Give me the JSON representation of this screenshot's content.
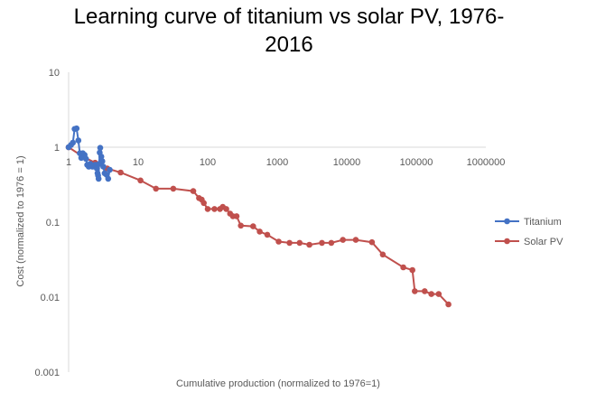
{
  "chart_data": {
    "type": "scatter",
    "title_line1": "Learning curve of titanium vs solar PV, 1976-",
    "title_line2": "2016",
    "xlabel": "Cumulative production (normalized to 1976=1)",
    "ylabel": "Cost (normalized to 1976 = 1)",
    "x_scale": "log",
    "y_scale": "log",
    "xlim": [
      1,
      1000000
    ],
    "ylim": [
      0.001,
      10
    ],
    "x_ticks": [
      "1",
      "10",
      "100",
      "1000",
      "10000",
      "100000",
      "1000000"
    ],
    "y_ticks": [
      "10",
      "1",
      "0.1",
      "0.01",
      "0.001"
    ],
    "grid": false,
    "legend_position": "right",
    "series": [
      {
        "name": "Titanium",
        "color": "#4472C4",
        "points": [
          [
            1.0,
            1.0
          ],
          [
            1.08,
            1.07
          ],
          [
            1.15,
            1.15
          ],
          [
            1.22,
            1.75
          ],
          [
            1.3,
            1.78
          ],
          [
            1.38,
            1.23
          ],
          [
            1.45,
            0.83
          ],
          [
            1.52,
            0.72
          ],
          [
            1.6,
            0.83
          ],
          [
            1.7,
            0.79
          ],
          [
            1.78,
            0.7
          ],
          [
            1.85,
            0.58
          ],
          [
            1.95,
            0.55
          ],
          [
            2.05,
            0.6
          ],
          [
            2.2,
            0.55
          ],
          [
            2.4,
            0.58
          ],
          [
            2.55,
            0.52
          ],
          [
            2.6,
            0.45
          ],
          [
            2.65,
            0.42
          ],
          [
            2.7,
            0.38
          ],
          [
            2.75,
            0.6
          ],
          [
            2.8,
            0.85
          ],
          [
            2.85,
            0.98
          ],
          [
            2.95,
            0.75
          ],
          [
            3.05,
            0.65
          ],
          [
            3.15,
            0.55
          ],
          [
            3.3,
            0.45
          ],
          [
            3.5,
            0.43
          ],
          [
            3.7,
            0.38
          ],
          [
            3.9,
            0.5
          ]
        ]
      },
      {
        "name": "Solar PV",
        "color": "#C0504D",
        "points": [
          [
            1.0,
            1.0
          ],
          [
            1.6,
            0.75
          ],
          [
            2.4,
            0.62
          ],
          [
            3.6,
            0.52
          ],
          [
            5.6,
            0.46
          ],
          [
            10.8,
            0.36
          ],
          [
            18,
            0.28
          ],
          [
            32,
            0.28
          ],
          [
            62,
            0.26
          ],
          [
            75,
            0.21
          ],
          [
            82,
            0.2
          ],
          [
            88,
            0.18
          ],
          [
            100,
            0.15
          ],
          [
            125,
            0.15
          ],
          [
            150,
            0.15
          ],
          [
            165,
            0.16
          ],
          [
            185,
            0.15
          ],
          [
            210,
            0.13
          ],
          [
            230,
            0.12
          ],
          [
            260,
            0.12
          ],
          [
            300,
            0.09
          ],
          [
            450,
            0.088
          ],
          [
            560,
            0.075
          ],
          [
            720,
            0.068
          ],
          [
            1050,
            0.055
          ],
          [
            1500,
            0.053
          ],
          [
            2100,
            0.053
          ],
          [
            2900,
            0.05
          ],
          [
            4400,
            0.053
          ],
          [
            6000,
            0.053
          ],
          [
            8800,
            0.058
          ],
          [
            13500,
            0.058
          ],
          [
            23000,
            0.054
          ],
          [
            33000,
            0.037
          ],
          [
            65000,
            0.025
          ],
          [
            88000,
            0.023
          ],
          [
            95000,
            0.012
          ],
          [
            132000,
            0.012
          ],
          [
            165000,
            0.011
          ],
          [
            210000,
            0.011
          ],
          [
            290000,
            0.008
          ]
        ]
      }
    ]
  }
}
